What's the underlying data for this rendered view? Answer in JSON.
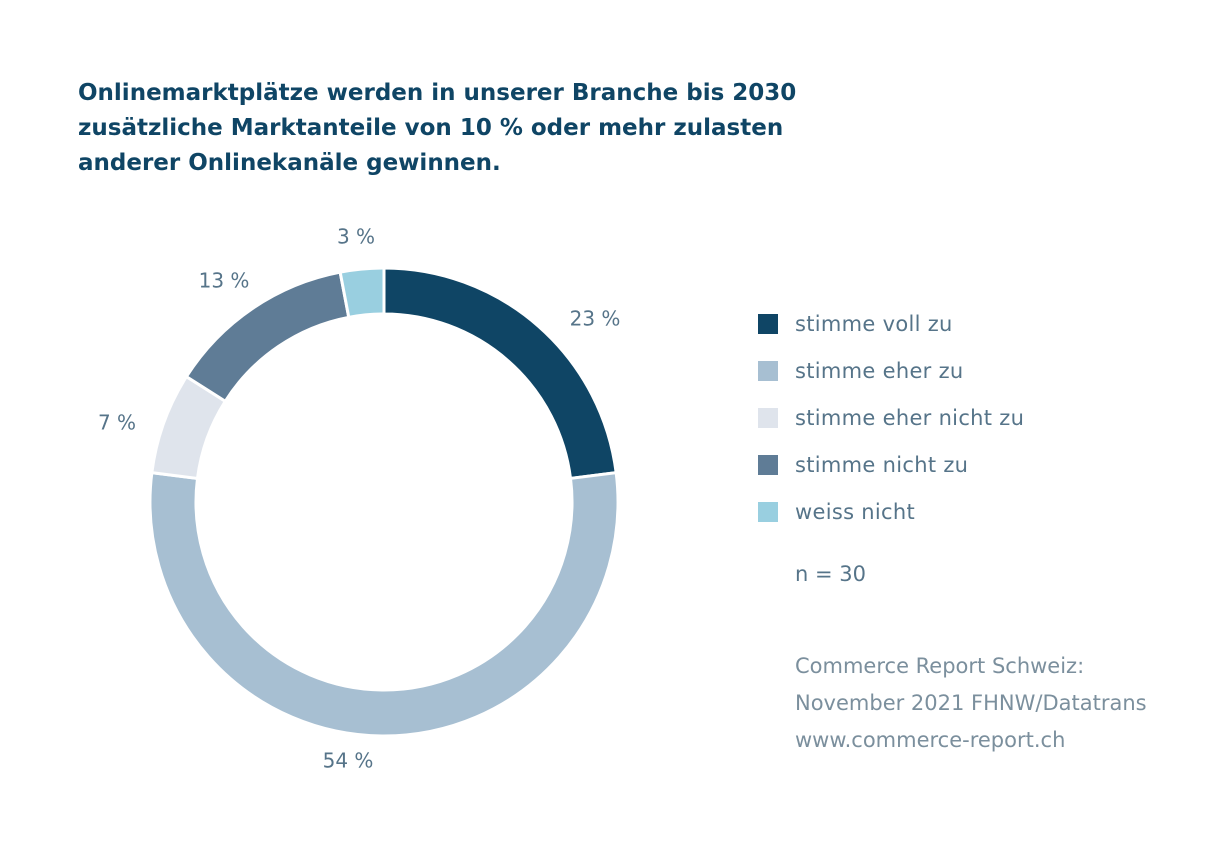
{
  "title_lines": [
    "Onlinemarktplätze werden in unserer Branche bis 2030",
    "zusätzliche Marktanteile von 10 % oder mehr zulasten",
    "anderer Onlinekanäle gewinnen."
  ],
  "chart_data": {
    "type": "pie",
    "donut": true,
    "categories": [
      "stimme voll zu",
      "stimme eher zu",
      "stimme eher nicht zu",
      "stimme nicht zu",
      "weiss nicht"
    ],
    "values": [
      23,
      54,
      7,
      13,
      3
    ],
    "labels": [
      "23 %",
      "54 %",
      "7 %",
      "13 %",
      "3 %"
    ],
    "colors": [
      "#0f4565",
      "#a7bfd2",
      "#dfe4ec",
      "#5f7c96",
      "#99cfe0"
    ],
    "legend_position": "right"
  },
  "legend": [
    {
      "label": "stimme voll zu",
      "color": "#0f4565"
    },
    {
      "label": "stimme eher zu",
      "color": "#a7bfd2"
    },
    {
      "label": "stimme eher nicht zu",
      "color": "#dfe4ec"
    },
    {
      "label": "stimme nicht zu",
      "color": "#5f7c96"
    },
    {
      "label": "weiss nicht",
      "color": "#99cfe0"
    }
  ],
  "n_note": "n = 30",
  "source_lines": [
    "Commerce Report Schweiz:",
    "November 2021 FHNW/Datatrans",
    "www.commerce-report.ch"
  ]
}
